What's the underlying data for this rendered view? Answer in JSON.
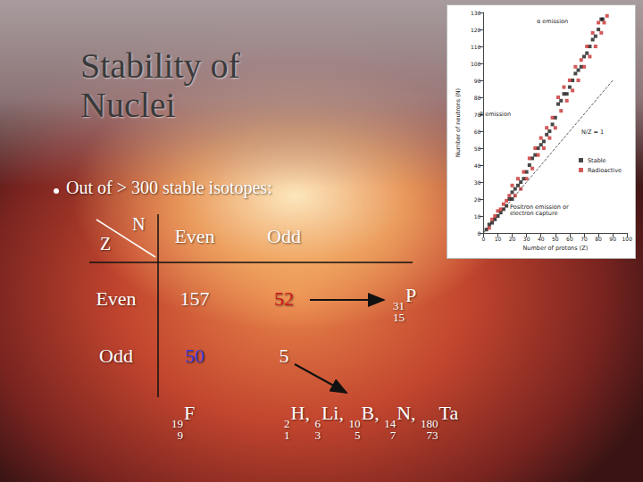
{
  "slide": {
    "title": "Stability of Nuclei",
    "bullet": "Out of > 300 stable isotopes:",
    "table": {
      "row_axis": "Z",
      "column_axis": "N",
      "columns": [
        "Even",
        "Odd"
      ],
      "rows": [
        {
          "label": "Even",
          "cells": [
            {
              "value": 157,
              "color": "#ffffff"
            },
            {
              "value": 52,
              "color": "#d01818",
              "example": {
                "nuclides": [
                  {
                    "A": 31,
                    "Z": 15,
                    "symbol": "P"
                  }
                ]
              }
            }
          ]
        },
        {
          "label": "Odd",
          "cells": [
            {
              "value": 50,
              "color": "#3a3ad8",
              "example": {
                "nuclides": [
                  {
                    "A": 19,
                    "Z": 9,
                    "symbol": "F"
                  }
                ]
              }
            },
            {
              "value": 5,
              "color": "#ffffff",
              "example": {
                "separator": ", ",
                "nuclides": [
                  {
                    "A": 2,
                    "Z": 1,
                    "symbol": "H"
                  },
                  {
                    "A": 6,
                    "Z": 3,
                    "symbol": "Li"
                  },
                  {
                    "A": 10,
                    "Z": 5,
                    "symbol": "B"
                  },
                  {
                    "A": 14,
                    "Z": 7,
                    "symbol": "N"
                  },
                  {
                    "A": 180,
                    "Z": 73,
                    "symbol": "Ta"
                  }
                ]
              }
            }
          ]
        }
      ]
    }
  },
  "chart_data": {
    "type": "scatter",
    "x_label": "Number of protons (Z)",
    "y_label": "Number of neutrons (N)",
    "xlim": [
      0,
      100
    ],
    "xticks": [
      0,
      10,
      20,
      30,
      40,
      50,
      60,
      70,
      80,
      90,
      100
    ],
    "ylim": [
      0,
      130
    ],
    "yticks": [
      0,
      10,
      20,
      30,
      40,
      50,
      60,
      70,
      80,
      90,
      100,
      110,
      120,
      130
    ],
    "grid": false,
    "legend": "right",
    "series": [
      {
        "name": "Stable",
        "color": "#1a1a1a",
        "marker": "square",
        "x": [
          2,
          4,
          6,
          8,
          10,
          12,
          14,
          16,
          18,
          20,
          20,
          22,
          24,
          26,
          28,
          30,
          32,
          34,
          36,
          38,
          40,
          42,
          44,
          46,
          48,
          50,
          52,
          54,
          56,
          58,
          60,
          62,
          64,
          66,
          68,
          70,
          72,
          74,
          76,
          78,
          80,
          82,
          83
        ],
        "values": [
          2,
          5,
          6,
          8,
          10,
          12,
          14,
          16,
          20,
          20,
          24,
          26,
          28,
          30,
          32,
          36,
          40,
          44,
          46,
          50,
          52,
          54,
          58,
          60,
          64,
          68,
          76,
          78,
          82,
          82,
          86,
          90,
          94,
          96,
          98,
          104,
          106,
          110,
          114,
          116,
          120,
          126,
          126
        ]
      },
      {
        "name": "Radioactive",
        "color": "#c83030",
        "marker": "square",
        "x": [
          4,
          6,
          8,
          10,
          12,
          14,
          16,
          18,
          20,
          22,
          24,
          26,
          28,
          30,
          32,
          34,
          36,
          38,
          40,
          42,
          44,
          46,
          48,
          50,
          52,
          54,
          56,
          58,
          60,
          62,
          64,
          66,
          68,
          70,
          72,
          74,
          76,
          78,
          80,
          82,
          84,
          86
        ],
        "values": [
          3,
          8,
          10,
          13,
          14,
          17,
          19,
          22,
          28,
          22,
          32,
          26,
          36,
          32,
          44,
          38,
          50,
          46,
          56,
          50,
          62,
          56,
          68,
          62,
          80,
          72,
          86,
          78,
          90,
          84,
          98,
          90,
          102,
          98,
          110,
          104,
          118,
          110,
          124,
          118,
          124,
          128
        ]
      }
    ],
    "annotations": [
      {
        "text": "α emission"
      },
      {
        "text": "β emission"
      },
      {
        "text": "Positron emission or electron capture"
      },
      {
        "text": "N/Z = 1",
        "line": {
          "x": [
            0,
            90
          ],
          "y": [
            0,
            90
          ]
        },
        "line_style": "dashed"
      }
    ]
  }
}
